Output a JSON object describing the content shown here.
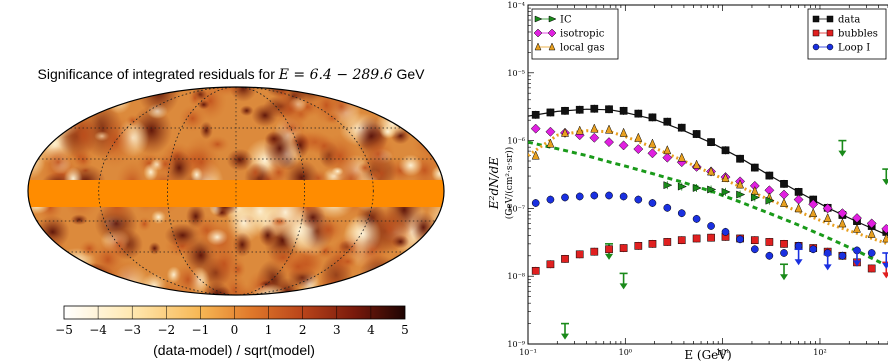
{
  "chart_data": [
    {
      "type": "heatmap",
      "title_prefix": "Significance of integrated residuals for ",
      "title_math": "E = 6.4 − 289.6",
      "title_unit": " GeV",
      "colorbar": {
        "min": -5,
        "max": 5,
        "ticks": [
          "−5",
          "−4",
          "−3",
          "−2",
          "−1",
          "0",
          "1",
          "2",
          "3",
          "4",
          "5"
        ],
        "label": "(data-model) / sqrt(model)",
        "colors": [
          "#ffffff",
          "#ffe6a8",
          "#f7b754",
          "#e0782a",
          "#b9441a",
          "#7a1a0c",
          "#2a0603"
        ]
      }
    },
    {
      "type": "scatter",
      "x_scale": "log",
      "y_scale": "log",
      "xlim": [
        0.1,
        500
      ],
      "ylim": [
        1e-09,
        0.0001
      ],
      "xlabel": "E (GeV)",
      "ylabel": "E²dN/dE (GeV/(cm²·s·sr))",
      "x_ticks": [
        "10⁻¹",
        "10⁰",
        "10¹",
        "10²"
      ],
      "y_ticks": [
        "10⁻⁹",
        "10⁻⁸",
        "10⁻⁷",
        "10⁻⁶",
        "10⁻⁵",
        "10⁻⁴"
      ],
      "legend_left": [
        "IC",
        "isotropic",
        "local gas"
      ],
      "legend_right": [
        "data",
        "bubbles",
        "Loop I"
      ],
      "series": [
        {
          "name": "data",
          "color": "#111111",
          "marker": "square",
          "x": [
            0.12,
            0.17,
            0.24,
            0.34,
            0.48,
            0.68,
            0.96,
            1.36,
            1.9,
            2.7,
            3.8,
            5.4,
            7.6,
            10.7,
            15.1,
            21.4,
            30.2,
            42.7,
            60.3,
            85.2,
            120,
            170,
            240,
            340,
            480
          ],
          "y": [
            2.4e-06,
            2.6e-06,
            2.75e-06,
            2.85e-06,
            2.95e-06,
            2.9e-06,
            2.75e-06,
            2.5e-06,
            2.2e-06,
            1.9e-06,
            1.55e-06,
            1.25e-06,
            9.5e-07,
            7.2e-07,
            5.4e-07,
            4e-07,
            3.05e-07,
            2.3e-07,
            1.75e-07,
            1.35e-07,
            1.02e-07,
            8e-08,
            6.5e-08,
            5.5e-08,
            4.5e-08
          ]
        },
        {
          "name": "isotropic",
          "color": "#e020e0",
          "marker": "diamond",
          "x": [
            0.12,
            0.17,
            0.24,
            0.34,
            0.48,
            0.68,
            0.96,
            1.36,
            1.9,
            2.7,
            3.8,
            5.4,
            7.6,
            10.7,
            15.1,
            21.4,
            30.2,
            42.7,
            60.3,
            85.2,
            120,
            170,
            240,
            340,
            480
          ],
          "y": [
            1.5e-06,
            1.35e-06,
            1.3e-06,
            1.2e-06,
            1.1e-06,
            9.5e-07,
            8.5e-07,
            7.5e-07,
            6.5e-07,
            5.6e-07,
            4.8e-07,
            4.1e-07,
            3.5e-07,
            2.9e-07,
            2.5e-07,
            2.15e-07,
            1.85e-07,
            1.6e-07,
            1.35e-07,
            1.15e-07,
            1e-07,
            8.5e-08,
            7.2e-08,
            6e-08,
            5e-08
          ]
        },
        {
          "name": "local gas",
          "color": "#e8a020",
          "marker": "triangle",
          "x": [
            0.12,
            0.17,
            0.24,
            0.34,
            0.48,
            0.68,
            0.96,
            1.36,
            1.9,
            2.7,
            3.8,
            5.4,
            7.6,
            10.7,
            15.1,
            21.4,
            30.2,
            42.7,
            60.3,
            85.2,
            120,
            170,
            240,
            340,
            480
          ],
          "y": [
            6e-07,
            9e-07,
            1.3e-06,
            1.4e-06,
            1.5e-06,
            1.45e-06,
            1.3e-06,
            1.1e-06,
            9e-07,
            7.2e-07,
            5.6e-07,
            4.4e-07,
            3.5e-07,
            2.8e-07,
            2.25e-07,
            1.8e-07,
            1.45e-07,
            1.2e-07,
            1e-07,
            8.5e-08,
            7.2e-08,
            6e-08,
            5e-08,
            4.2e-08,
            3.6e-08
          ]
        },
        {
          "name": "IC",
          "color": "#1a8a1a",
          "marker": "triangle-right",
          "x": [
            2.7,
            3.8,
            5.4,
            7.6,
            10.7,
            15.1,
            21.4,
            30.2
          ],
          "y": [
            2.2e-07,
            2.1e-07,
            2e-07,
            1.9e-07,
            1.75e-07,
            1.6e-07,
            1.45e-07,
            1.3e-07
          ]
        },
        {
          "name": "IC upper limits",
          "color": "#1a8a1a",
          "marker": "ul",
          "x": [
            0.24,
            0.68,
            0.96,
            42.7,
            170,
            480
          ],
          "y": [
            2e-09,
            3e-08,
            1.1e-08,
            1.5e-08,
            1e-06,
            3.8e-07
          ]
        },
        {
          "name": "bubbles",
          "color": "#e02020",
          "marker": "square",
          "x": [
            0.12,
            0.17,
            0.24,
            0.34,
            0.48,
            0.68,
            0.96,
            1.36,
            1.9,
            2.7,
            3.8,
            5.4,
            7.6,
            10.7,
            15.1,
            21.4,
            30.2,
            42.7,
            60.3,
            85.2,
            120,
            170,
            240,
            340
          ],
          "y": [
            1.2e-08,
            1.5e-08,
            1.8e-08,
            2.1e-08,
            2.3e-08,
            2.5e-08,
            2.6e-08,
            2.8e-08,
            3e-08,
            3.2e-08,
            3.4e-08,
            3.6e-08,
            3.7e-08,
            3.8e-08,
            3.6e-08,
            3.4e-08,
            3.2e-08,
            3e-08,
            2.8e-08,
            2.6e-08,
            2.3e-08,
            2e-08,
            1.6e-08,
            1.3e-08
          ]
        },
        {
          "name": "bubbles upper limits",
          "color": "#e02020",
          "marker": "ul",
          "x": [
            480
          ],
          "y": [
            1.6e-08
          ]
        },
        {
          "name": "Loop I",
          "color": "#1a30e0",
          "marker": "circle",
          "x": [
            0.12,
            0.17,
            0.24,
            0.34,
            0.48,
            0.68,
            0.96,
            1.36,
            1.9,
            2.7,
            3.8,
            5.4,
            7.6,
            10.7,
            15.1,
            21.4,
            30.2,
            42.7,
            60.3,
            85.2,
            120,
            170,
            240,
            340
          ],
          "y": [
            1.2e-07,
            1.35e-07,
            1.45e-07,
            1.5e-07,
            1.55e-07,
            1.55e-07,
            1.5e-07,
            1.35e-07,
            1.2e-07,
            1.02e-07,
            8.5e-08,
            7e-08,
            5.5e-08,
            4.5e-08,
            3.5e-08,
            2.5e-08,
            2e-08,
            2.2e-08,
            2.8e-08,
            2.5e-08,
            2.2e-08,
            2e-08,
            2.4e-08,
            2.2e-08
          ]
        },
        {
          "name": "Loop I upper limits",
          "color": "#1a30e0",
          "marker": "ul",
          "x": [
            60.3,
            120,
            240,
            480
          ],
          "y": [
            2.5e-08,
            2.1e-08,
            2.4e-08,
            2.2e-08
          ]
        }
      ],
      "lines": [
        {
          "name": "data model",
          "color": "#111111",
          "dash": "",
          "x": [
            0.1,
            0.2,
            0.4,
            0.7,
            1,
            2,
            4,
            8,
            15,
            30,
            60,
            120,
            250,
            500
          ],
          "y": [
            2.3e-06,
            2.7e-06,
            2.9e-06,
            2.85e-06,
            2.6e-06,
            2.05e-06,
            1.4e-06,
            9e-07,
            5.6e-07,
            3.1e-07,
            1.75e-07,
            1.02e-07,
            6.2e-08,
            4e-08
          ]
        },
        {
          "name": "IC model",
          "color": "#1a9a1a",
          "dash": "5,4",
          "x": [
            0.1,
            0.2,
            0.4,
            0.7,
            1,
            2,
            4,
            8,
            15,
            30,
            60,
            120,
            250,
            500
          ],
          "y": [
            9.5e-07,
            7.6e-07,
            6e-07,
            4.8e-07,
            4.2e-07,
            3.2e-07,
            2.4e-07,
            1.75e-07,
            1.25e-07,
            8.5e-08,
            5.7e-08,
            3.7e-08,
            2.3e-08,
            1.4e-08
          ]
        },
        {
          "name": "local gas model",
          "color": "#e8a020",
          "dash": "2,3",
          "x": [
            0.1,
            0.2,
            0.4,
            0.7,
            1,
            2,
            4,
            8,
            15,
            30,
            60,
            120,
            250,
            500
          ],
          "y": [
            6e-07,
            1.2e-06,
            1.4e-06,
            1.35e-06,
            1.15e-06,
            7.8e-07,
            5e-07,
            3.2e-07,
            2.1e-07,
            1.35e-07,
            9e-08,
            6e-08,
            4.2e-08,
            3e-08
          ]
        }
      ]
    }
  ]
}
